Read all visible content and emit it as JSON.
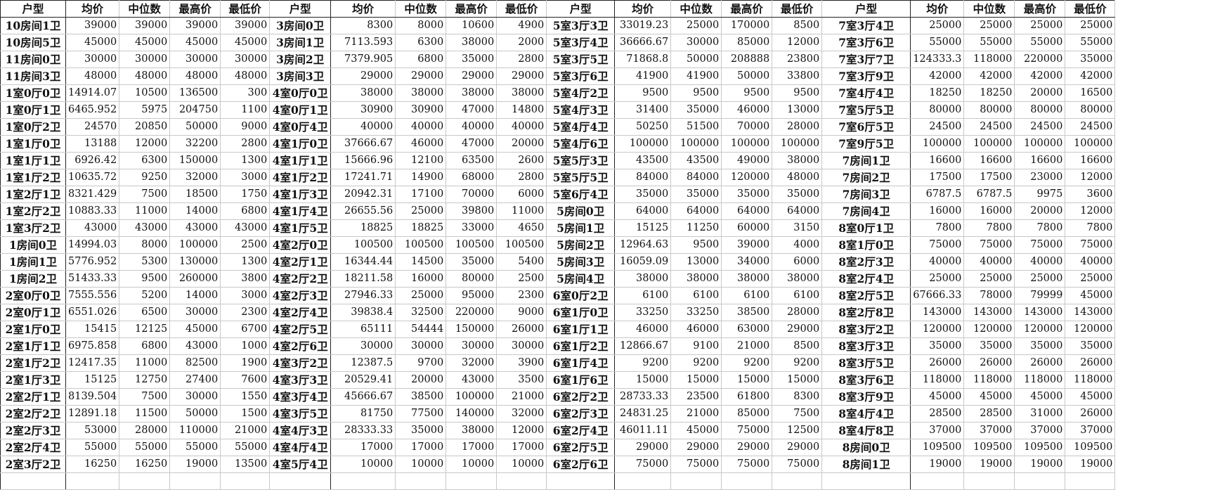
{
  "headers": [
    "户型",
    "均价",
    "中位数",
    "最高价",
    "最低价",
    "户型",
    "均价",
    "中位数",
    "最高价",
    "最低价",
    "户型",
    "均价",
    "中位数",
    "最高价",
    "最低价",
    "户型",
    "均价",
    "中位数",
    "最高价",
    "最低价"
  ],
  "rows": [
    [
      "10房间1卫",
      "39000",
      "39000",
      "39000",
      "39000",
      "3房间0卫",
      "8300",
      "8000",
      "10600",
      "4900",
      "5室3厅3卫",
      "33019.23",
      "25000",
      "170000",
      "8500",
      "7室3厅4卫",
      "25000",
      "25000",
      "25000",
      "25000"
    ],
    [
      "10房间5卫",
      "45000",
      "45000",
      "45000",
      "45000",
      "3房间1卫",
      "7113.593",
      "6300",
      "38000",
      "2000",
      "5室3厅4卫",
      "36666.67",
      "30000",
      "85000",
      "12000",
      "7室3厅6卫",
      "55000",
      "55000",
      "55000",
      "55000"
    ],
    [
      "11房间0卫",
      "30000",
      "30000",
      "30000",
      "30000",
      "3房间2卫",
      "7379.905",
      "6800",
      "35000",
      "2800",
      "5室3厅5卫",
      "71868.8",
      "50000",
      "208888",
      "23800",
      "7室3厅7卫",
      "124333.3",
      "118000",
      "220000",
      "35000"
    ],
    [
      "11房间3卫",
      "48000",
      "48000",
      "48000",
      "48000",
      "3房间3卫",
      "29000",
      "29000",
      "29000",
      "29000",
      "5室3厅6卫",
      "41900",
      "41900",
      "50000",
      "33800",
      "7室3厅9卫",
      "42000",
      "42000",
      "42000",
      "42000"
    ],
    [
      "1室0厅0卫",
      "14914.07",
      "10500",
      "136500",
      "300",
      "4室0厅0卫",
      "38000",
      "38000",
      "38000",
      "38000",
      "5室4厅2卫",
      "9500",
      "9500",
      "9500",
      "9500",
      "7室4厅4卫",
      "18250",
      "18250",
      "20000",
      "16500"
    ],
    [
      "1室0厅1卫",
      "6465.952",
      "5975",
      "204750",
      "1100",
      "4室0厅1卫",
      "30900",
      "30900",
      "47000",
      "14800",
      "5室4厅3卫",
      "31400",
      "35000",
      "46000",
      "13000",
      "7室5厅5卫",
      "80000",
      "80000",
      "80000",
      "80000"
    ],
    [
      "1室0厅2卫",
      "24570",
      "20850",
      "50000",
      "9000",
      "4室0厅4卫",
      "40000",
      "40000",
      "40000",
      "40000",
      "5室4厅4卫",
      "50250",
      "51500",
      "70000",
      "28000",
      "7室6厅5卫",
      "24500",
      "24500",
      "24500",
      "24500"
    ],
    [
      "1室1厅0卫",
      "13188",
      "12000",
      "32200",
      "2800",
      "4室1厅0卫",
      "37666.67",
      "46000",
      "47000",
      "20000",
      "5室4厅6卫",
      "100000",
      "100000",
      "100000",
      "100000",
      "7室9厅5卫",
      "100000",
      "100000",
      "100000",
      "100000"
    ],
    [
      "1室1厅1卫",
      "6926.42",
      "6300",
      "150000",
      "1300",
      "4室1厅1卫",
      "15666.96",
      "12100",
      "63500",
      "2600",
      "5室5厅3卫",
      "43500",
      "43500",
      "49000",
      "38000",
      "7房间1卫",
      "16600",
      "16600",
      "16600",
      "16600"
    ],
    [
      "1室1厅2卫",
      "10635.72",
      "9250",
      "32000",
      "3000",
      "4室1厅2卫",
      "17241.71",
      "14900",
      "68000",
      "2800",
      "5室5厅5卫",
      "84000",
      "84000",
      "120000",
      "48000",
      "7房间2卫",
      "17500",
      "17500",
      "23000",
      "12000"
    ],
    [
      "1室2厅1卫",
      "8321.429",
      "7500",
      "18500",
      "1750",
      "4室1厅3卫",
      "20942.31",
      "17100",
      "70000",
      "6000",
      "5室6厅4卫",
      "35000",
      "35000",
      "35000",
      "35000",
      "7房间3卫",
      "6787.5",
      "6787.5",
      "9975",
      "3600"
    ],
    [
      "1室2厅2卫",
      "10883.33",
      "11000",
      "14000",
      "6800",
      "4室1厅4卫",
      "26655.56",
      "25000",
      "39800",
      "11000",
      "5房间0卫",
      "64000",
      "64000",
      "64000",
      "64000",
      "7房间4卫",
      "16000",
      "16000",
      "20000",
      "12000"
    ],
    [
      "1室3厅2卫",
      "43000",
      "43000",
      "43000",
      "43000",
      "4室1厅5卫",
      "18825",
      "18825",
      "33000",
      "4650",
      "5房间1卫",
      "15125",
      "11250",
      "60000",
      "3150",
      "8室0厅1卫",
      "7800",
      "7800",
      "7800",
      "7800"
    ],
    [
      "1房间0卫",
      "14994.03",
      "8000",
      "100000",
      "2500",
      "4室2厅0卫",
      "100500",
      "100500",
      "100500",
      "100500",
      "5房间2卫",
      "12964.63",
      "9500",
      "39000",
      "4000",
      "8室1厅0卫",
      "75000",
      "75000",
      "75000",
      "75000"
    ],
    [
      "1房间1卫",
      "5776.952",
      "5300",
      "130000",
      "1300",
      "4室2厅1卫",
      "16344.44",
      "14500",
      "35000",
      "5400",
      "5房间3卫",
      "16059.09",
      "13000",
      "34000",
      "6000",
      "8室2厅3卫",
      "40000",
      "40000",
      "40000",
      "40000"
    ],
    [
      "1房间2卫",
      "51433.33",
      "9500",
      "260000",
      "3800",
      "4室2厅2卫",
      "18211.58",
      "16000",
      "80000",
      "2500",
      "5房间4卫",
      "38000",
      "38000",
      "38000",
      "38000",
      "8室2厅4卫",
      "25000",
      "25000",
      "25000",
      "25000"
    ],
    [
      "2室0厅0卫",
      "7555.556",
      "5200",
      "14000",
      "3000",
      "4室2厅3卫",
      "27946.33",
      "25000",
      "95000",
      "2300",
      "6室0厅2卫",
      "6100",
      "6100",
      "6100",
      "6100",
      "8室2厅5卫",
      "67666.33",
      "78000",
      "79999",
      "45000"
    ],
    [
      "2室0厅1卫",
      "6551.026",
      "6500",
      "30000",
      "2300",
      "4室2厅4卫",
      "39838.4",
      "32500",
      "220000",
      "9000",
      "6室1厅0卫",
      "33250",
      "33250",
      "38500",
      "28000",
      "8室2厅8卫",
      "143000",
      "143000",
      "143000",
      "143000"
    ],
    [
      "2室1厅0卫",
      "15415",
      "12125",
      "45000",
      "6700",
      "4室2厅5卫",
      "65111",
      "54444",
      "150000",
      "26000",
      "6室1厅1卫",
      "46000",
      "46000",
      "63000",
      "29000",
      "8室3厅2卫",
      "120000",
      "120000",
      "120000",
      "120000"
    ],
    [
      "2室1厅1卫",
      "6975.858",
      "6800",
      "43000",
      "1000",
      "4室2厅6卫",
      "30000",
      "30000",
      "30000",
      "30000",
      "6室1厅2卫",
      "12866.67",
      "9100",
      "21000",
      "8500",
      "8室3厅3卫",
      "35000",
      "35000",
      "35000",
      "35000"
    ],
    [
      "2室1厅2卫",
      "12417.35",
      "11000",
      "82500",
      "1900",
      "4室3厅2卫",
      "12387.5",
      "9700",
      "32000",
      "3900",
      "6室1厅4卫",
      "9200",
      "9200",
      "9200",
      "9200",
      "8室3厅5卫",
      "26000",
      "26000",
      "26000",
      "26000"
    ],
    [
      "2室1厅3卫",
      "15125",
      "12750",
      "27400",
      "7600",
      "4室3厅3卫",
      "20529.41",
      "20000",
      "43000",
      "3500",
      "6室1厅6卫",
      "15000",
      "15000",
      "15000",
      "15000",
      "8室3厅6卫",
      "118000",
      "118000",
      "118000",
      "118000"
    ],
    [
      "2室2厅1卫",
      "8139.504",
      "7500",
      "30000",
      "1550",
      "4室3厅4卫",
      "45666.67",
      "38500",
      "100000",
      "21000",
      "6室2厅2卫",
      "28733.33",
      "23500",
      "61800",
      "8300",
      "8室3厅9卫",
      "45000",
      "45000",
      "45000",
      "45000"
    ],
    [
      "2室2厅2卫",
      "12891.18",
      "11500",
      "50000",
      "1500",
      "4室3厅5卫",
      "81750",
      "77500",
      "140000",
      "32000",
      "6室2厅3卫",
      "24831.25",
      "21000",
      "85000",
      "7500",
      "8室4厅4卫",
      "28500",
      "28500",
      "31000",
      "26000"
    ],
    [
      "2室2厅3卫",
      "53000",
      "28000",
      "110000",
      "21000",
      "4室4厅3卫",
      "28333.33",
      "35000",
      "38000",
      "12000",
      "6室2厅4卫",
      "46011.11",
      "45000",
      "75000",
      "12500",
      "8室4厅8卫",
      "37000",
      "37000",
      "37000",
      "37000"
    ],
    [
      "2室2厅4卫",
      "55000",
      "55000",
      "55000",
      "55000",
      "4室4厅4卫",
      "17000",
      "17000",
      "17000",
      "17000",
      "6室2厅5卫",
      "29000",
      "29000",
      "29000",
      "29000",
      "8房间0卫",
      "109500",
      "109500",
      "109500",
      "109500"
    ],
    [
      "2室3厅2卫",
      "16250",
      "16250",
      "19000",
      "13500",
      "4室5厅4卫",
      "10000",
      "10000",
      "10000",
      "10000",
      "6室2厅6卫",
      "75000",
      "75000",
      "75000",
      "75000",
      "8房间1卫",
      "19000",
      "19000",
      "19000",
      "19000"
    ]
  ]
}
